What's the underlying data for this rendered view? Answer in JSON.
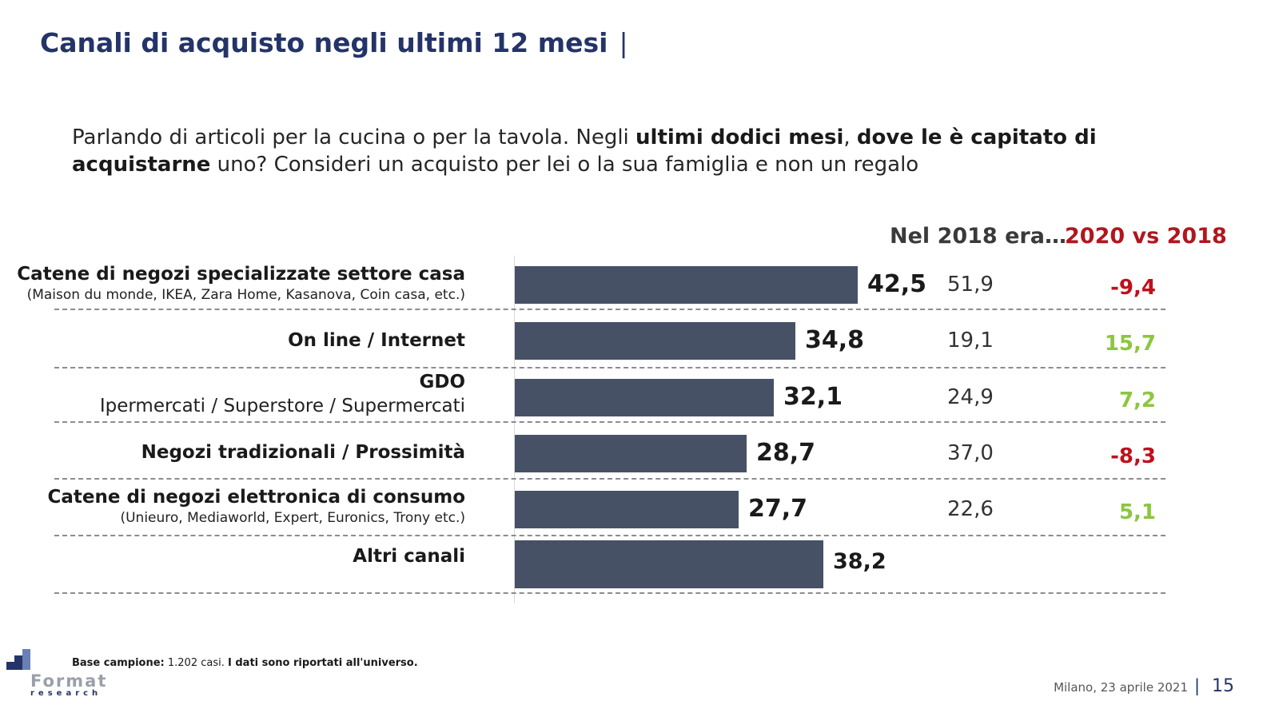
{
  "title": "Canali di acquisto negli ultimi 12 mesi",
  "title_separator": "|",
  "question": {
    "part1": "Parlando di articoli per la cucina o per la tavola. Negli ",
    "bold1": "ultimi dodici mesi",
    "part2": ", ",
    "bold2": "dove le è capitato di acquistarne",
    "part3": " uno? Consideri un acquisto per lei o la sua famiglia e non un regalo"
  },
  "column_headers": {
    "y2018": "Nel 2018 era…",
    "diff": "2020 vs 2018"
  },
  "colors": {
    "bar": "#465166",
    "negative": "#c0101c",
    "positive": "#8cc63f",
    "title": "#243468"
  },
  "chart_data": {
    "type": "bar",
    "orientation": "horizontal",
    "categories": [
      "Catene di negozi specializzate settore casa",
      "On line / Internet",
      "GDO",
      "Negozi tradizionali / Prossimità",
      "Catene di negozi elettronica di consumo",
      "Altri canali"
    ],
    "subtitles": [
      "(Maison du monde, IKEA, Zara Home, Kasanova, Coin casa, etc.)",
      "",
      "Ipermercati / Superstore / Supermercati",
      "",
      "(Unieuro, Mediaworld, Expert, Euronics, Trony etc.)",
      ""
    ],
    "values": [
      42.5,
      34.8,
      32.1,
      28.7,
      27.7,
      38.2
    ],
    "value_labels": [
      "42,5",
      "34,8",
      "32,1",
      "28,7",
      "27,7",
      "38,2"
    ],
    "values_2018": [
      "51,9",
      "19,1",
      "24,9",
      "37,0",
      "22,6",
      ""
    ],
    "diff_2020_vs_2018": [
      "-9,4",
      "15,7",
      "7,2",
      "-8,3",
      "5,1",
      ""
    ],
    "diff_sign": [
      "negative",
      "positive",
      "positive",
      "negative",
      "positive",
      ""
    ],
    "xlim": [
      0,
      100
    ],
    "grid": false
  },
  "footer": {
    "base_label": "Base campione:",
    "base_value": " 1.202 casi. ",
    "base_note": "I dati sono riportati all'universo.",
    "date": "Milano, 23 aprile 2021",
    "separator": "|",
    "page": "15",
    "logo_text": "Format",
    "logo_sub": "research"
  }
}
